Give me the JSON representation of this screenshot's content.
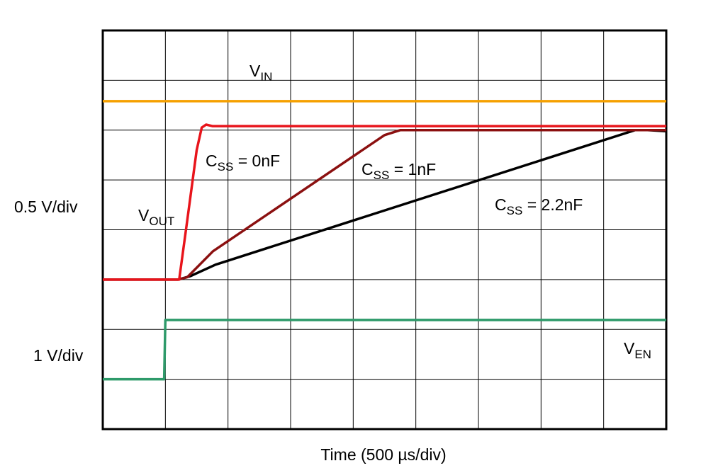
{
  "chart_data": {
    "type": "line",
    "x_label": "Time (500 µs/div)",
    "y_labels": [
      "0.5 V/div",
      "1 V/div"
    ],
    "xlim": [
      0,
      9
    ],
    "ylim": [
      0,
      8
    ],
    "xticks": [
      0,
      1,
      2,
      3,
      4,
      5,
      6,
      7,
      8,
      9
    ],
    "yticks": [
      0,
      1,
      2,
      3,
      4,
      5,
      6,
      7,
      8
    ],
    "grid": true,
    "annotations": [
      {
        "base": "V",
        "sub": "OUT"
      }
    ],
    "series": [
      {
        "name": {
          "base": "V",
          "sub": "IN"
        },
        "color": "#f5a000",
        "x": [
          0,
          9
        ],
        "values": [
          6.58,
          6.58
        ]
      },
      {
        "name": {
          "base": "V",
          "sub": "EN"
        },
        "color": "#2e9a6a",
        "x": [
          0,
          0.98,
          1.0,
          9
        ],
        "values": [
          1.0,
          1.0,
          2.19,
          2.19
        ]
      },
      {
        "name": {
          "base": "C",
          "sub": "SS",
          "rest": " = 2.2nF"
        },
        "color": "#000000",
        "x": [
          0,
          1.2,
          1.4,
          1.8,
          8.5,
          8.7,
          9
        ],
        "values": [
          3,
          3,
          3.07,
          3.3,
          6.0,
          6.0,
          5.98
        ]
      },
      {
        "name": {
          "base": "C",
          "sub": "SS",
          "rest": " = 1nF"
        },
        "color": "#8b1010",
        "x": [
          0,
          1.2,
          1.35,
          1.76,
          4.5,
          4.75,
          9
        ],
        "values": [
          3,
          3,
          3.05,
          3.57,
          5.9,
          6.0,
          6.0
        ]
      },
      {
        "name": {
          "base": "C",
          "sub": "SS",
          "rest": " = 0nF"
        },
        "color": "#e8141b",
        "x": [
          0,
          1.1,
          1.22,
          1.35,
          1.5,
          1.58,
          1.65,
          1.75,
          9
        ],
        "values": [
          3,
          3,
          3.0,
          4.2,
          5.6,
          6.05,
          6.11,
          6.08,
          6.08
        ]
      }
    ]
  }
}
